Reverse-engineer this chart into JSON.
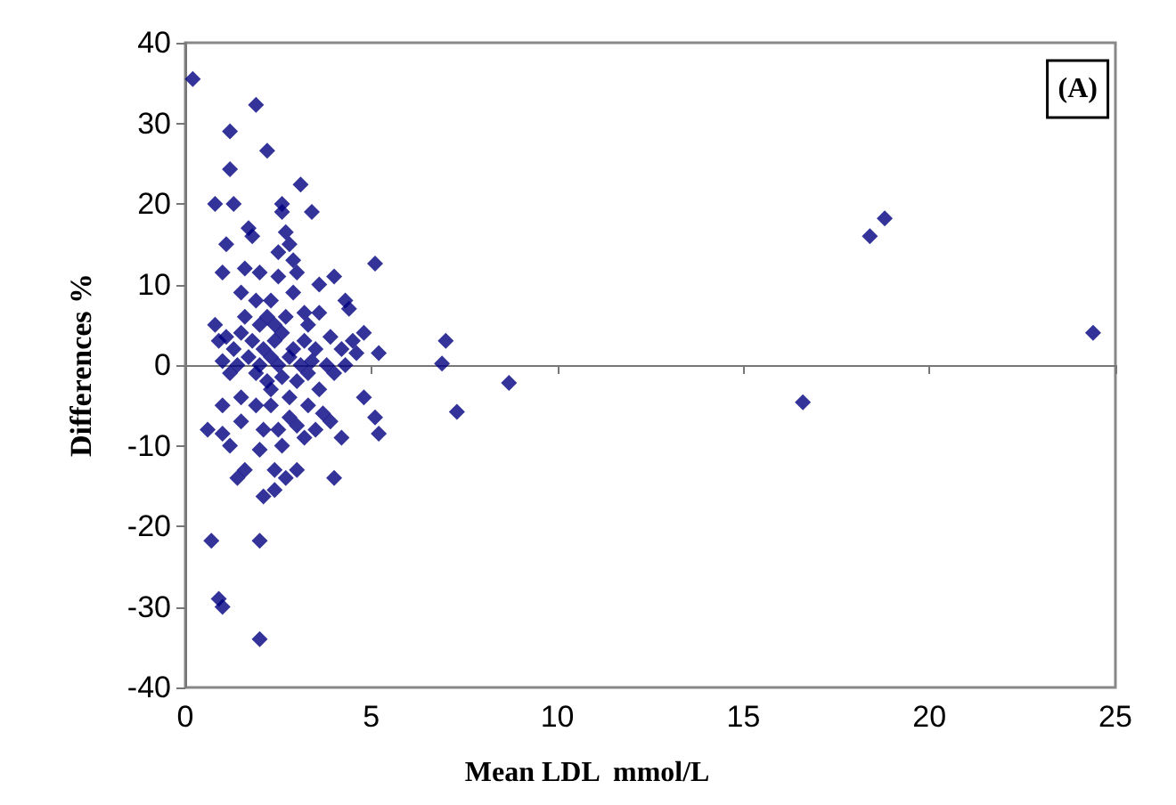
{
  "chart_data": {
    "type": "scatter",
    "xlabel": "Mean LDL  mmol/L",
    "ylabel": "Differences %",
    "annotations": [
      "(A)"
    ],
    "x": [
      0.2,
      1.9,
      1.2,
      2.2,
      1.2,
      3.1,
      0.8,
      1.3,
      2.6,
      2.6,
      3.4,
      1.7,
      1.8,
      2.7,
      2.8,
      1.1,
      2.5,
      2.9,
      1.6,
      1.0,
      2.0,
      2.5,
      3.0,
      4.0,
      5.1,
      3.6,
      4.3,
      4.4,
      1.5,
      1.9,
      2.3,
      2.9,
      3.2,
      3.6,
      4.8,
      0.8,
      1.1,
      1.5,
      2.0,
      2.2,
      2.7,
      3.3,
      3.9,
      4.5,
      0.9,
      1.3,
      1.8,
      2.1,
      2.4,
      2.6,
      2.9,
      3.2,
      3.5,
      4.2,
      4.6,
      5.2,
      1.0,
      1.4,
      1.7,
      2.0,
      2.3,
      2.5,
      2.8,
      3.1,
      3.4,
      3.8,
      4.3,
      6.9,
      7.0,
      1.2,
      1.9,
      2.2,
      2.6,
      3.0,
      3.3,
      4.0,
      4.8,
      5.1,
      5.2,
      1.0,
      1.5,
      1.9,
      2.3,
      2.8,
      3.3,
      3.7,
      0.6,
      1.0,
      1.5,
      2.1,
      2.5,
      3.0,
      3.5,
      3.9,
      1.2,
      2.0,
      2.6,
      3.2,
      4.2,
      1.6,
      2.4,
      3.0,
      1.4,
      2.7,
      4.0,
      2.4,
      2.1,
      0.7,
      2.0,
      0.9,
      1.0,
      2.0,
      7.3,
      8.7,
      16.6,
      18.4,
      18.8,
      24.4,
      2.3,
      2.4,
      1.6,
      2.8,
      3.6
    ],
    "values": [
      35.5,
      32.3,
      29,
      26.6,
      24.3,
      22.4,
      20,
      20,
      20,
      19,
      19,
      17,
      16,
      16.5,
      15,
      15,
      14,
      13,
      12,
      11.5,
      11.5,
      11,
      11.5,
      11,
      12.6,
      10,
      8,
      7,
      9,
      8,
      8,
      9,
      6.5,
      6.5,
      4,
      5,
      3.5,
      4,
      5,
      6,
      6,
      5,
      3.5,
      3,
      3,
      2,
      3,
      2,
      3,
      4,
      2,
      3,
      2,
      2,
      1.5,
      1.5,
      0.5,
      0,
      1,
      0,
      1,
      0,
      1,
      0,
      0.5,
      0,
      0,
      0.2,
      3,
      -1,
      -1,
      -2,
      -1.5,
      -2,
      -1,
      -1,
      -4,
      -6.5,
      -8.5,
      -5,
      -4,
      -5,
      -5,
      -4,
      -5,
      -6,
      -8,
      -8.5,
      -7,
      -8,
      -8,
      -7.5,
      -8,
      -7,
      -10,
      -10.5,
      -10,
      -9,
      -9,
      -13,
      -13,
      -13,
      -14,
      -14,
      -14,
      -15.5,
      -16.3,
      -21.8,
      -21.8,
      -29,
      -30,
      -34,
      -5.8,
      -2.2,
      -4.6,
      16,
      18.2,
      4,
      -3,
      5,
      6,
      -6.5,
      -3
    ],
    "color": "#000080",
    "marker": "diamond",
    "xlim": [
      0,
      25
    ],
    "xticks": [
      0,
      5,
      10,
      15,
      20,
      25
    ],
    "ylim": [
      -40,
      40
    ],
    "yticks": [
      -40,
      -30,
      -20,
      -10,
      0,
      10,
      20,
      30,
      40
    ]
  }
}
